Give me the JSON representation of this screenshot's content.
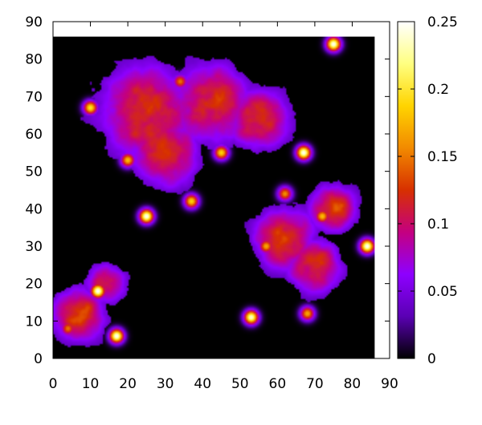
{
  "chart_data": {
    "type": "heatmap",
    "title": "",
    "xlabel": "",
    "ylabel": "",
    "xlim": [
      0,
      90
    ],
    "ylim": [
      0,
      90
    ],
    "data_extent": {
      "x": [
        0,
        86
      ],
      "y": [
        0,
        86
      ]
    },
    "x_ticks": [
      0,
      10,
      20,
      30,
      40,
      50,
      60,
      70,
      80,
      90
    ],
    "y_ticks": [
      0,
      10,
      20,
      30,
      40,
      50,
      60,
      70,
      80,
      90
    ],
    "colorbar": {
      "range": [
        0,
        0.25
      ],
      "ticks": [
        0,
        0.05,
        0.1,
        0.15,
        0.2,
        0.25
      ],
      "tick_labels": [
        "0",
        "0.05",
        "0.1",
        "0.15",
        "0.2",
        "0.25"
      ],
      "colormap": [
        "#000000",
        "#5a00b4",
        "#8e00ff",
        "#c40080",
        "#d73000",
        "#f28a00",
        "#ffd400",
        "#ffff80",
        "#ffffff"
      ]
    },
    "grid": false,
    "hotspots": [
      {
        "x": 25,
        "y": 38,
        "value": 0.25
      },
      {
        "x": 67,
        "y": 55,
        "value": 0.25
      },
      {
        "x": 75,
        "y": 84,
        "value": 0.25
      },
      {
        "x": 84,
        "y": 30,
        "value": 0.25
      },
      {
        "x": 12,
        "y": 18,
        "value": 0.25
      },
      {
        "x": 17,
        "y": 6,
        "value": 0.25
      },
      {
        "x": 53,
        "y": 11,
        "value": 0.24
      },
      {
        "x": 10,
        "y": 67,
        "value": 0.2
      },
      {
        "x": 45,
        "y": 55,
        "value": 0.19
      },
      {
        "x": 37,
        "y": 42,
        "value": 0.19
      },
      {
        "x": 20,
        "y": 53,
        "value": 0.18
      },
      {
        "x": 72,
        "y": 38,
        "value": 0.18
      },
      {
        "x": 68,
        "y": 12,
        "value": 0.17
      },
      {
        "x": 57,
        "y": 30,
        "value": 0.17
      },
      {
        "x": 62,
        "y": 44,
        "value": 0.16
      },
      {
        "x": 34,
        "y": 74,
        "value": 0.15
      },
      {
        "x": 4,
        "y": 8,
        "value": 0.15
      }
    ]
  }
}
